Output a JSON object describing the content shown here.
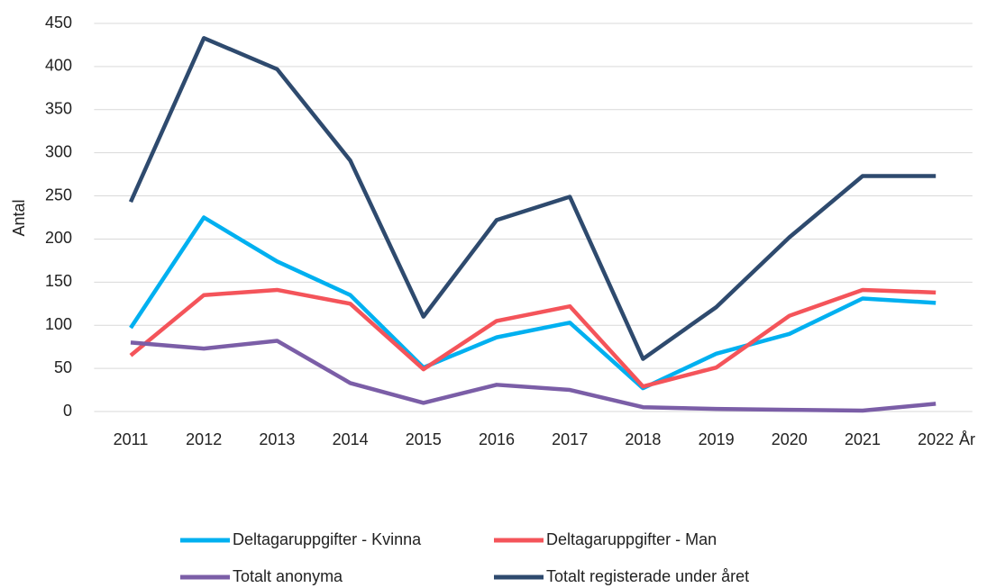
{
  "chart_data": {
    "type": "line",
    "x_label": "År",
    "y_label": "Antal",
    "categories": [
      "2011",
      "2012",
      "2013",
      "2014",
      "2015",
      "2016",
      "2017",
      "2018",
      "2019",
      "2020",
      "2021",
      "2022"
    ],
    "series": [
      {
        "name": "Deltagaruppgifter - Kvinna",
        "color": "#00b0f0",
        "values": [
          97,
          225,
          174,
          135,
          51,
          86,
          103,
          27,
          67,
          90,
          131,
          126
        ]
      },
      {
        "name": "Deltagaruppgifter - Man",
        "color": "#f4545a",
        "values": [
          65,
          135,
          141,
          125,
          49,
          105,
          122,
          29,
          51,
          111,
          141,
          138
        ]
      },
      {
        "name": "Totalt anonyma",
        "color": "#7b5ea7",
        "values": [
          80,
          73,
          82,
          33,
          10,
          31,
          25,
          5,
          3,
          2,
          1,
          9
        ]
      },
      {
        "name": "Totalt registerade under året",
        "color": "#2e4a6e",
        "values": [
          243,
          433,
          397,
          291,
          110,
          222,
          249,
          61,
          121,
          202,
          273,
          273
        ]
      }
    ],
    "ylim": [
      0,
      450
    ],
    "yticks": [
      0,
      50,
      100,
      150,
      200,
      250,
      300,
      350,
      400,
      450
    ],
    "grid": true,
    "legend": "bottom"
  }
}
